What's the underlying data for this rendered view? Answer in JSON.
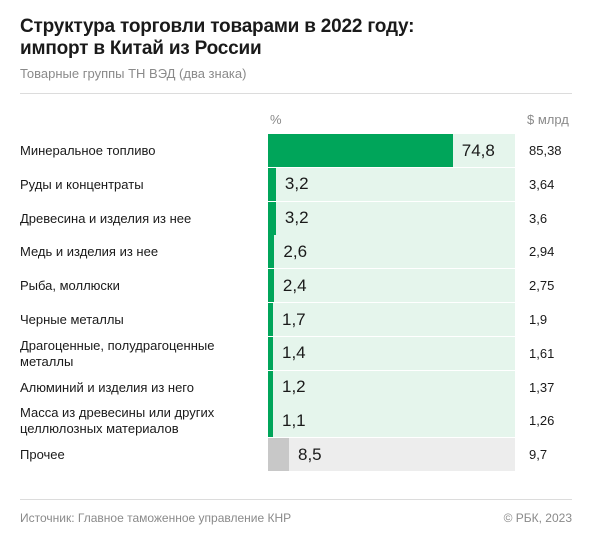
{
  "header": {
    "title_line1": "Структура торговли товарами в 2022 году:",
    "title_line2": "импорт в Китай из России",
    "subtitle": "Товарные группы ТН ВЭД (два знака)",
    "col_percent": "%",
    "col_usd": "$ млрд"
  },
  "footer": {
    "source": "Источник: Главное таможенное управление КНР",
    "copyright": "© РБК, 2023"
  },
  "colors": {
    "bar": "#00a55a",
    "track": "#e5f5ec",
    "other_bar": "#c8c8c8",
    "other_track": "#ededed"
  },
  "chart_data": {
    "type": "bar",
    "orientation": "horizontal",
    "categories": [
      "Минеральное топливо",
      "Руды и концентраты",
      "Древесина и изделия из нее",
      "Медь и изделия из нее",
      "Рыба, моллюски",
      "Черные металлы",
      "Драгоценные, полудрагоценные металлы",
      "Алюминий и изделия из него",
      "Масса из древесины или других целлюлозных материалов",
      "Прочее"
    ],
    "series": [
      {
        "name": "%",
        "values": [
          74.8,
          3.2,
          3.2,
          2.6,
          2.4,
          1.7,
          1.4,
          1.2,
          1.1,
          8.5
        ]
      },
      {
        "name": "$ млрд",
        "values": [
          85.38,
          3.64,
          3.6,
          2.94,
          2.75,
          1.9,
          1.61,
          1.37,
          1.26,
          9.7
        ]
      }
    ],
    "percent_labels": [
      "74,8",
      "3,2",
      "3,2",
      "2,6",
      "2,4",
      "1,7",
      "1,4",
      "1,2",
      "1,1",
      "8,5"
    ],
    "usd_labels": [
      "85,38",
      "3,64",
      "3,6",
      "2,94",
      "2,75",
      "1,9",
      "1,61",
      "1,37",
      "1,26",
      "9,7"
    ],
    "xlim": [
      0,
      100
    ]
  }
}
